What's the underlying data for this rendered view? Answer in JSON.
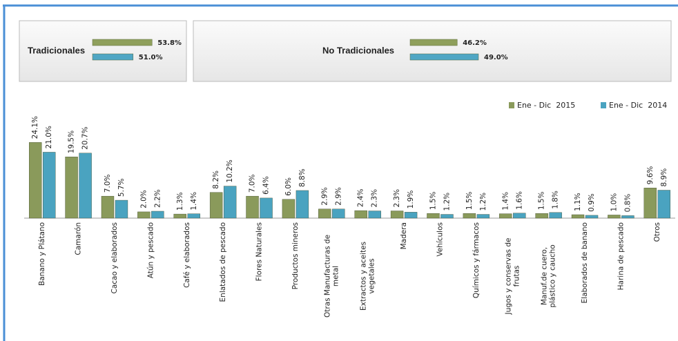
{
  "chart_data": [
    {
      "type": "hbar",
      "title": "Tradicionales",
      "values": [
        53.8,
        51.0
      ],
      "value_labels": [
        "53.8%",
        "51.0%"
      ],
      "colors": [
        "#8fa05c",
        "#4fa6c4"
      ],
      "xlim": [
        45,
        55
      ]
    },
    {
      "type": "hbar",
      "title": "No Tradicionales",
      "values": [
        46.2,
        49.0
      ],
      "value_labels": [
        "46.2%",
        "49.0%"
      ],
      "colors": [
        "#8fa05c",
        "#4fa6c4"
      ],
      "xlim": [
        40,
        50
      ]
    },
    {
      "type": "bar",
      "categories": [
        "Banano y Plátano",
        "Camarón",
        "Cacao y elaborados",
        "Atún y pescado",
        "Café y elaborados",
        "Enlatados de pescado",
        "Flores Naturales",
        "Productos mineros",
        "Otras Manufacturas de metal",
        "Extractos y aceites vegetales",
        "Madera",
        "Vehículos",
        "Químicos y fármacos",
        "Jugos y conservas de frutas",
        "Manuf.de cuero, plástico y caucho",
        "Elaborados de banano",
        "Harina de pescado",
        "Otros"
      ],
      "series": [
        {
          "name": "Ene - Dic  2015",
          "color": "#8a9a5b",
          "values": [
            24.1,
            19.5,
            7.0,
            2.0,
            1.3,
            8.2,
            7.0,
            6.0,
            2.9,
            2.4,
            2.3,
            1.5,
            1.5,
            1.4,
            1.5,
            1.1,
            1.0,
            9.6
          ],
          "value_labels": [
            "24.1%",
            "19.5%",
            "7.0%",
            "2.0%",
            "1.3%",
            "8.2%",
            "7.0%",
            "6.0%",
            "2.9%",
            "2.4%",
            "2.3%",
            "1.5%",
            "1.5%",
            "1.4%",
            "1.5%",
            "1.1%",
            "1.0%",
            "9.6%"
          ]
        },
        {
          "name": "Ene - Dic  2014",
          "color": "#4aa3c0",
          "values": [
            21.0,
            20.7,
            5.7,
            2.2,
            1.4,
            10.2,
            6.4,
            8.8,
            2.9,
            2.3,
            1.9,
            1.2,
            1.2,
            1.6,
            1.8,
            0.9,
            0.8,
            8.9
          ],
          "value_labels": [
            "21.0%",
            "20.7%",
            "5.7%",
            "2.2%",
            "1.4%",
            "10.2%",
            "6.4%",
            "8.8%",
            "2.9%",
            "2.3%",
            "1.9%",
            "1.2%",
            "1.2%",
            "1.6%",
            "1.8%",
            "0.9%",
            "0.8%",
            "8.9%"
          ]
        }
      ],
      "legend": "upper right"
    }
  ]
}
